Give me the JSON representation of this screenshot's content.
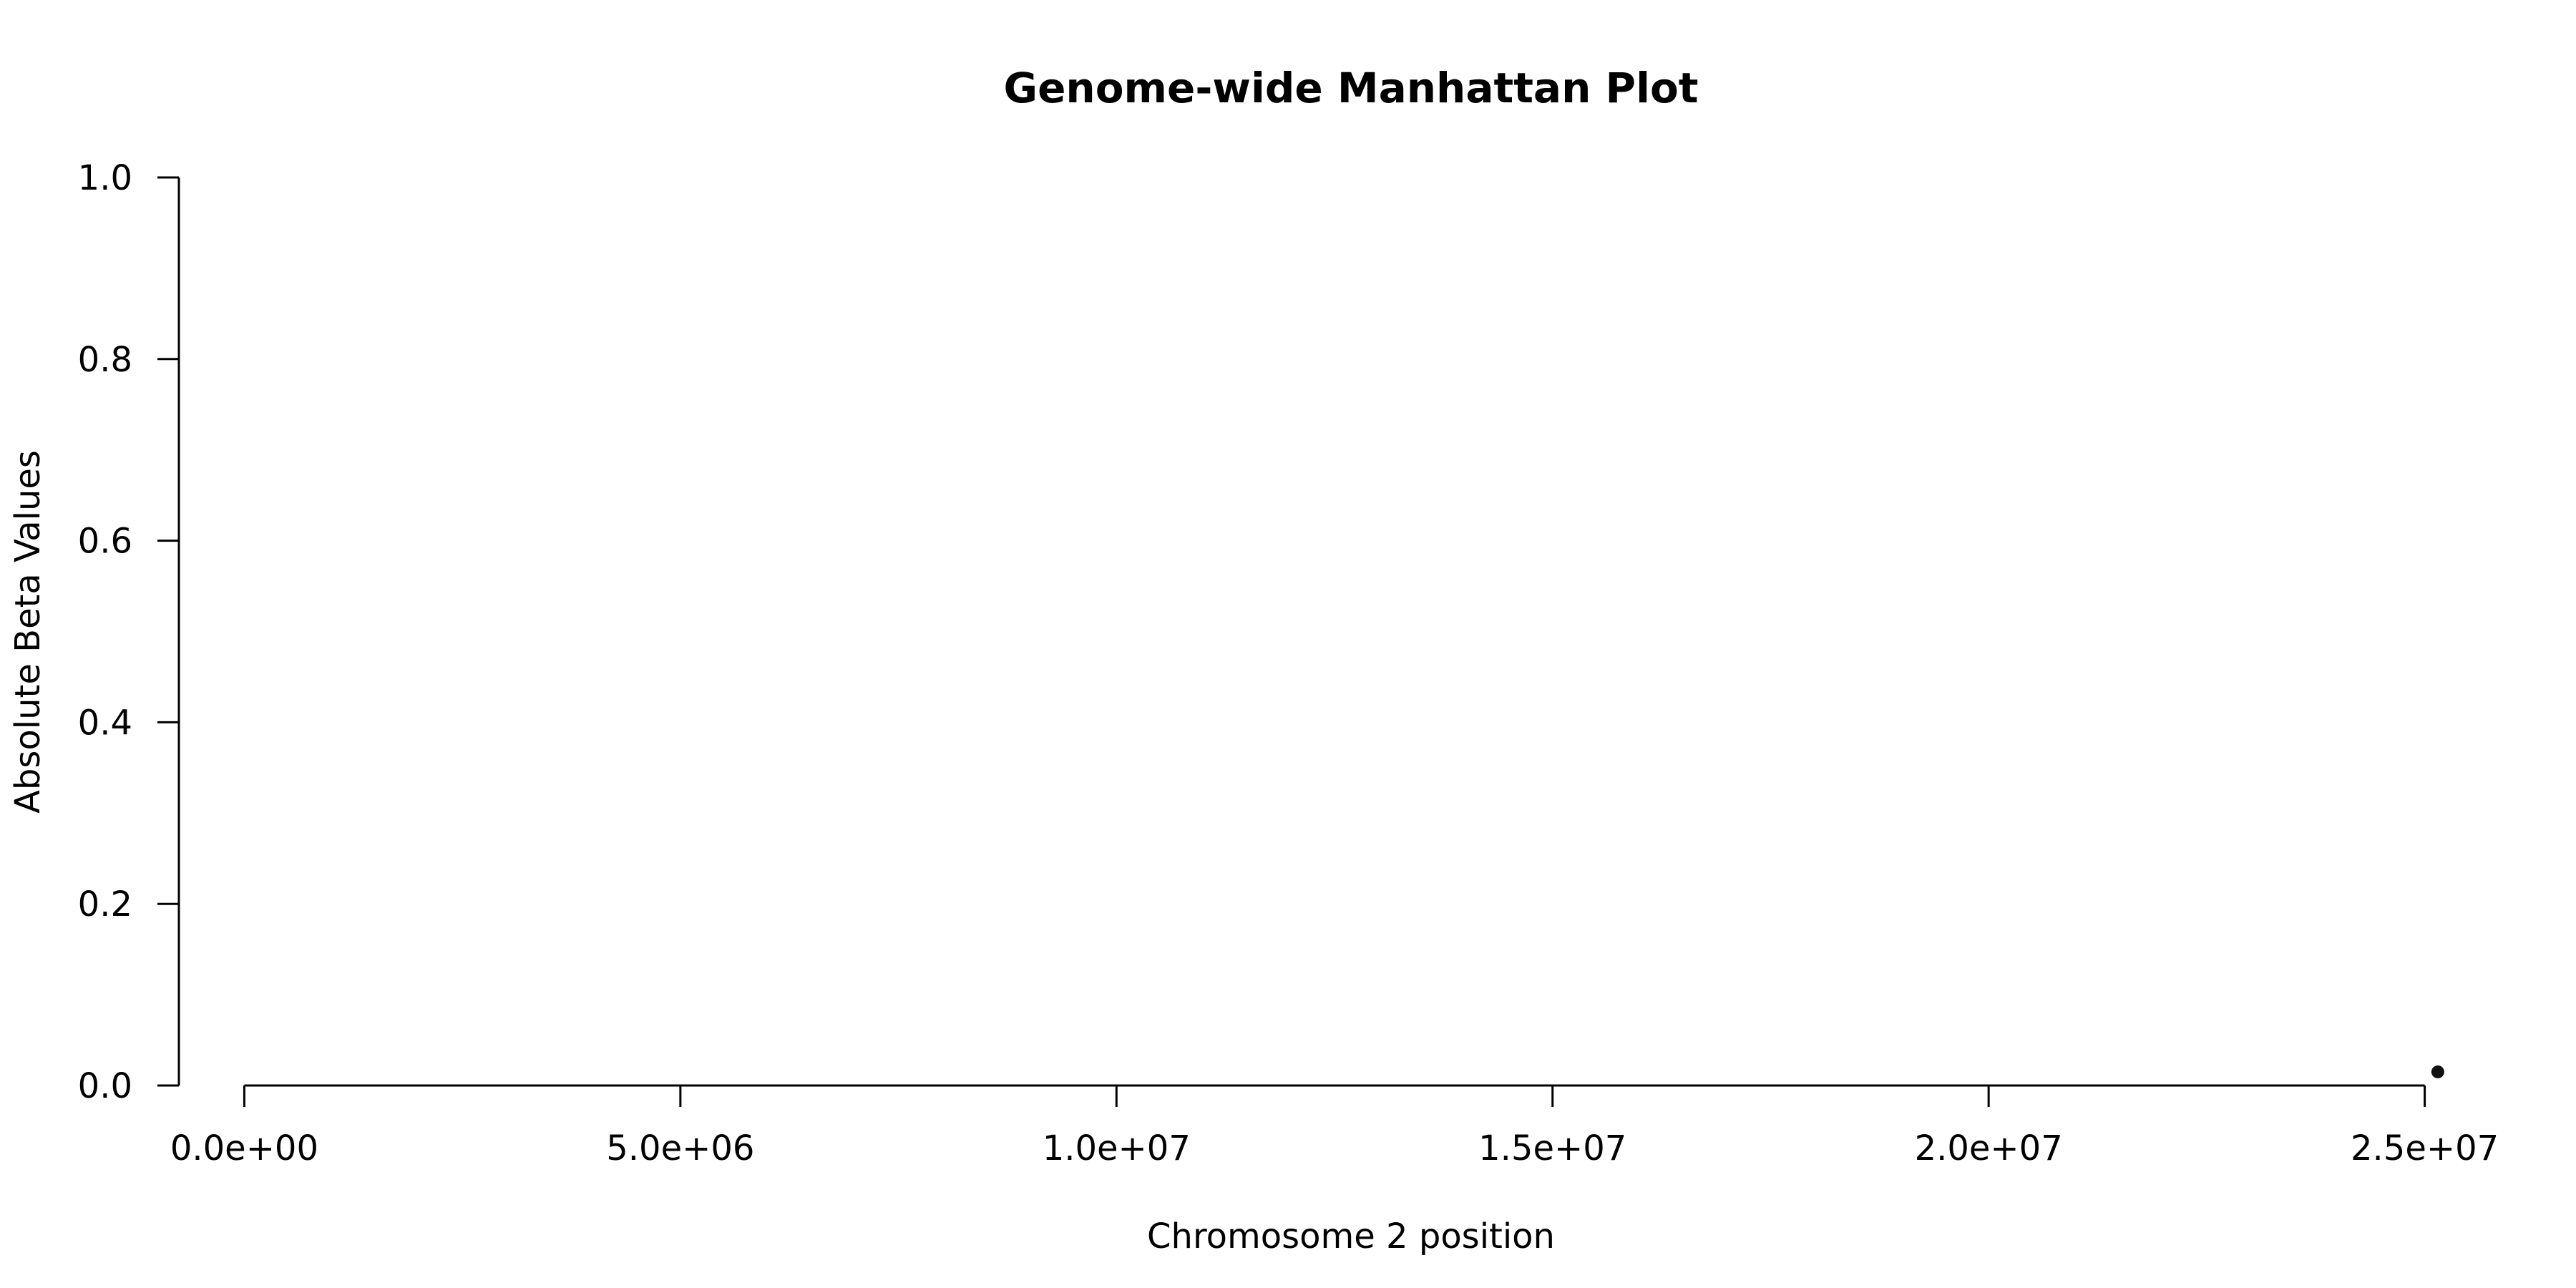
{
  "chart_data": {
    "type": "scatter",
    "title": "Genome-wide Manhattan Plot",
    "xlabel": "Chromosome 2 position",
    "ylabel": "Absolute Beta Values",
    "xlim": [
      -750000,
      25750000
    ],
    "ylim": [
      0,
      1
    ],
    "xticks": [
      0,
      5000000,
      10000000,
      15000000,
      20000000,
      25000000
    ],
    "xtick_labels": [
      "0.0e+00",
      "5.0e+06",
      "1.0e+07",
      "1.5e+07",
      "2.0e+07",
      "2.5e+07"
    ],
    "yticks": [
      0,
      0.2,
      0.4,
      0.6,
      0.8,
      1.0
    ],
    "ytick_labels": [
      "0.0",
      "0.2",
      "0.4",
      "0.6",
      "0.8",
      "1.0"
    ],
    "grid": false,
    "legend": "none",
    "point_color": "#111111",
    "series": [
      {
        "points": [
          {
            "x": 25150000,
            "y": 0.015
          }
        ]
      }
    ]
  }
}
